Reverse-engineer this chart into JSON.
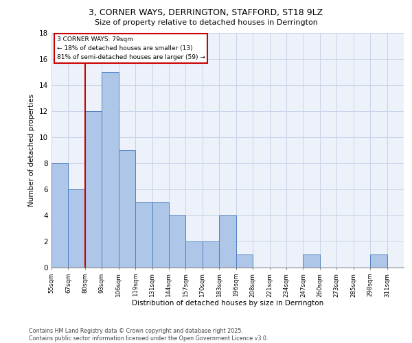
{
  "title1": "3, CORNER WAYS, DERRINGTON, STAFFORD, ST18 9LZ",
  "title2": "Size of property relative to detached houses in Derrington",
  "xlabel": "Distribution of detached houses by size in Derrington",
  "ylabel": "Number of detached properties",
  "bin_labels": [
    "55sqm",
    "67sqm",
    "80sqm",
    "93sqm",
    "106sqm",
    "119sqm",
    "131sqm",
    "144sqm",
    "157sqm",
    "170sqm",
    "183sqm",
    "196sqm",
    "208sqm",
    "221sqm",
    "234sqm",
    "247sqm",
    "260sqm",
    "273sqm",
    "285sqm",
    "298sqm",
    "311sqm"
  ],
  "counts": [
    8,
    6,
    12,
    15,
    9,
    5,
    5,
    4,
    2,
    2,
    4,
    1,
    0,
    0,
    0,
    1,
    0,
    0,
    0,
    1,
    0
  ],
  "bar_color": "#aec6e8",
  "bar_edge_color": "#5080c0",
  "property_line_index": 2,
  "annotation_lines": [
    "3 CORNER WAYS: 79sqm",
    "← 18% of detached houses are smaller (13)",
    "81% of semi-detached houses are larger (59) →"
  ],
  "annotation_box_edge_color": "#cc0000",
  "property_line_color": "#cc0000",
  "grid_color": "#c8d4e8",
  "background_color": "#edf2fa",
  "ylim": [
    0,
    18
  ],
  "yticks": [
    0,
    2,
    4,
    6,
    8,
    10,
    12,
    14,
    16,
    18
  ],
  "footer_line1": "Contains HM Land Registry data © Crown copyright and database right 2025.",
  "footer_line2": "Contains public sector information licensed under the Open Government Licence v3.0."
}
